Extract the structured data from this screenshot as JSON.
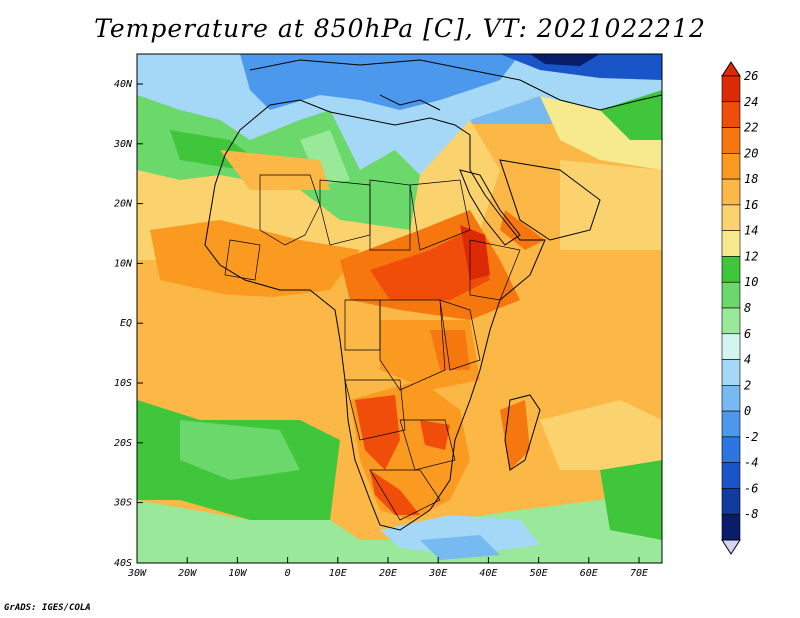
{
  "title": "Temperature at 850hPa [C], VT: 2021022212",
  "credit": "GrADS: IGES/COLA",
  "map": {
    "lon_labels": [
      "30W",
      "20W",
      "10W",
      "0",
      "10E",
      "20E",
      "30E",
      "40E",
      "50E",
      "60E",
      "70E"
    ],
    "lat_labels": [
      "40N",
      "30N",
      "20N",
      "10N",
      "EQ",
      "10S",
      "20S",
      "30S",
      "40S"
    ]
  },
  "legend": {
    "labels": [
      "26",
      "24",
      "22",
      "20",
      "18",
      "16",
      "14",
      "12",
      "10",
      "8",
      "6",
      "4",
      "2",
      "0",
      "-2",
      "-4",
      "-6",
      "-8"
    ],
    "colors": [
      "#dd2a06",
      "#f04d0a",
      "#f7770f",
      "#fb9a21",
      "#fbb847",
      "#fbd36e",
      "#f6e98e",
      "#3fc63a",
      "#6ad86a",
      "#9ae89a",
      "#d3f5f2",
      "#a5d8f7",
      "#77baf2",
      "#4c98ec",
      "#2c76e0",
      "#1955c9",
      "#103b9f",
      "#091d6a"
    ]
  }
}
